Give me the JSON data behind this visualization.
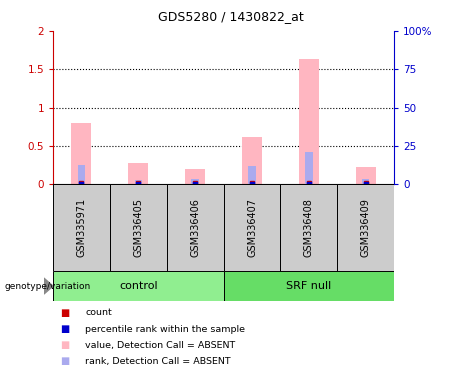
{
  "title": "GDS5280 / 1430822_at",
  "samples": [
    "GSM335971",
    "GSM336405",
    "GSM336406",
    "GSM336407",
    "GSM336408",
    "GSM336409"
  ],
  "groups": [
    {
      "label": "control",
      "indices": [
        0,
        1,
        2
      ],
      "color": "#90EE90"
    },
    {
      "label": "SRF null",
      "indices": [
        3,
        4,
        5
      ],
      "color": "#66DD66"
    }
  ],
  "group_label": "genotype/variation",
  "pink_bars": [
    0.8,
    0.28,
    0.2,
    0.62,
    1.63,
    0.22
  ],
  "blue_bars": [
    0.25,
    0.05,
    0.07,
    0.24,
    0.42,
    0.07
  ],
  "ylim_left": [
    0,
    2
  ],
  "ylim_right": [
    0,
    100
  ],
  "yticks_left": [
    0,
    0.5,
    1.0,
    1.5,
    2.0
  ],
  "yticks_right": [
    0,
    25,
    50,
    75,
    100
  ],
  "ytick_labels_left": [
    "0",
    "0.5",
    "1",
    "1.5",
    "2"
  ],
  "ytick_labels_right": [
    "0",
    "25",
    "50",
    "75",
    "100%"
  ],
  "left_axis_color": "#CC0000",
  "right_axis_color": "#0000CC",
  "pink_color": "#FFB6C1",
  "blue_color": "#AAAAEE",
  "red_color": "#CC0000",
  "dark_blue_color": "#0000CC",
  "legend_items": [
    {
      "label": "count",
      "color": "#CC0000"
    },
    {
      "label": "percentile rank within the sample",
      "color": "#0000CC"
    },
    {
      "label": "value, Detection Call = ABSENT",
      "color": "#FFB6C1"
    },
    {
      "label": "rank, Detection Call = ABSENT",
      "color": "#AAAAEE"
    }
  ],
  "sample_box_color": "#CCCCCC",
  "bg_color": "white"
}
